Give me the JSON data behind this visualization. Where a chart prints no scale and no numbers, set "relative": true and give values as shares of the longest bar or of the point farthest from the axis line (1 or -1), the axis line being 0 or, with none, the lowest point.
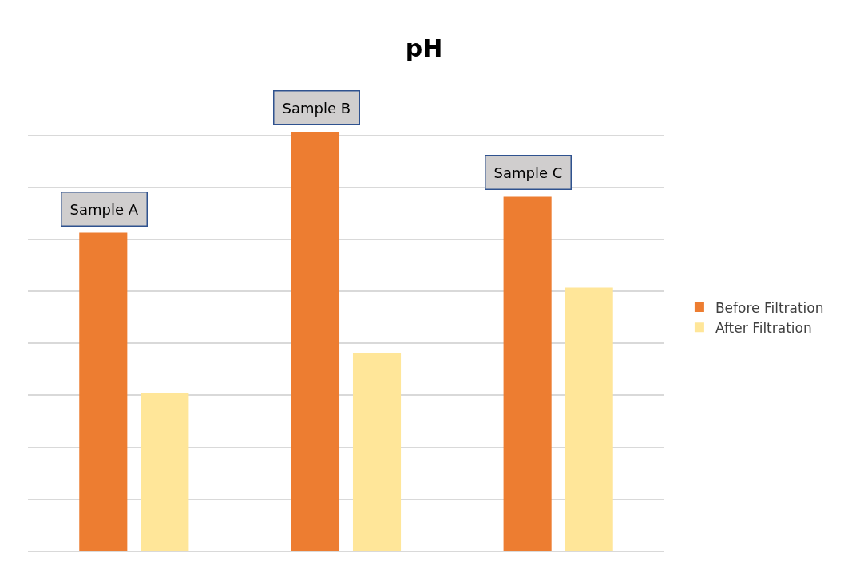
{
  "chart_data": {
    "type": "bar",
    "title": "pH",
    "relative": true,
    "categories": [
      "Sample A",
      "Sample B",
      "Sample C"
    ],
    "series": [
      {
        "name": "Before Filtration",
        "color": "#ed7d31",
        "values": [
          0.76,
          1,
          0.846
        ]
      },
      {
        "name": "After Filtration",
        "color": "#ffe699",
        "values": [
          0.377,
          0.474,
          0.629
        ]
      }
    ],
    "tick_labels": false,
    "grid": "y",
    "legend": "right"
  }
}
